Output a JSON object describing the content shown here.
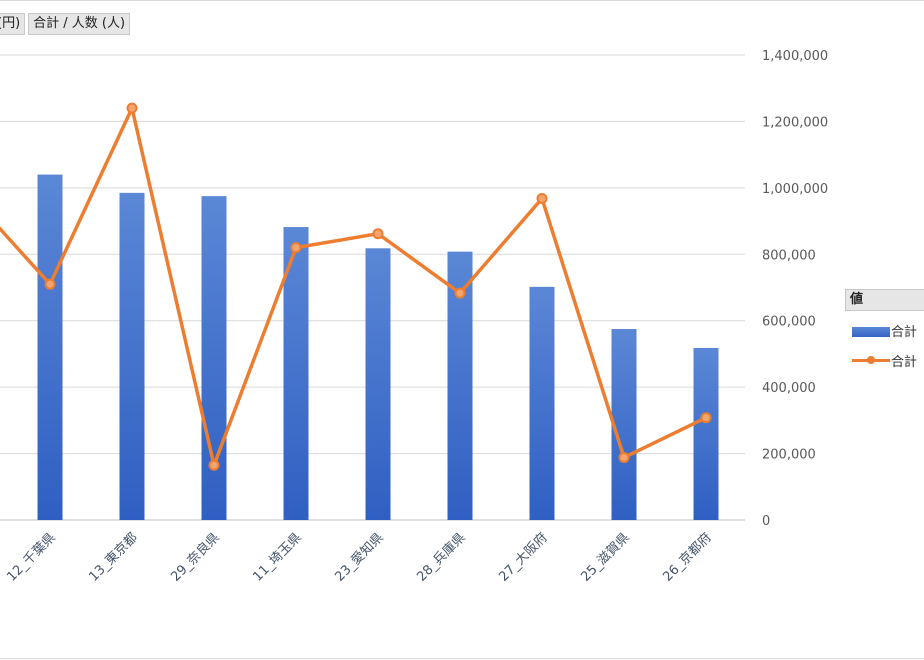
{
  "field_buttons": [
    "(円)",
    "合計 / 人数 (人)"
  ],
  "legend": {
    "title": "値",
    "items": [
      {
        "label": "合計",
        "kind": "bar",
        "color": "#4472c4"
      },
      {
        "label": "合計",
        "kind": "line",
        "color": "#ed7d31"
      }
    ]
  },
  "chart_data": {
    "type": "bar",
    "categories": [
      "12_千葉県",
      "13_東京都",
      "29_奈良県",
      "11_埼玉県",
      "23_愛知県",
      "28_兵庫県",
      "27_大阪府",
      "25_滋賀県",
      "26_京都府"
    ],
    "series": [
      {
        "type": "bar",
        "color": "#4472c4",
        "values": [
          1040000,
          985000,
          975000,
          882000,
          818000,
          808000,
          702000,
          575000,
          518000
        ]
      },
      {
        "type": "line",
        "color": "#ed7d31",
        "axis": "y2",
        "values": [
          710000,
          1240000,
          165000,
          820000,
          862000,
          683000,
          968000,
          188000,
          308000
        ]
      }
    ],
    "y2_axis": {
      "range": [
        0,
        1400000
      ],
      "ticks": [
        "0",
        "200,000",
        "400,000",
        "600,000",
        "800,000",
        "1,000,000",
        "1,200,000",
        "1,400,000"
      ],
      "position": "right"
    },
    "grid": true,
    "legend_position": "right"
  }
}
